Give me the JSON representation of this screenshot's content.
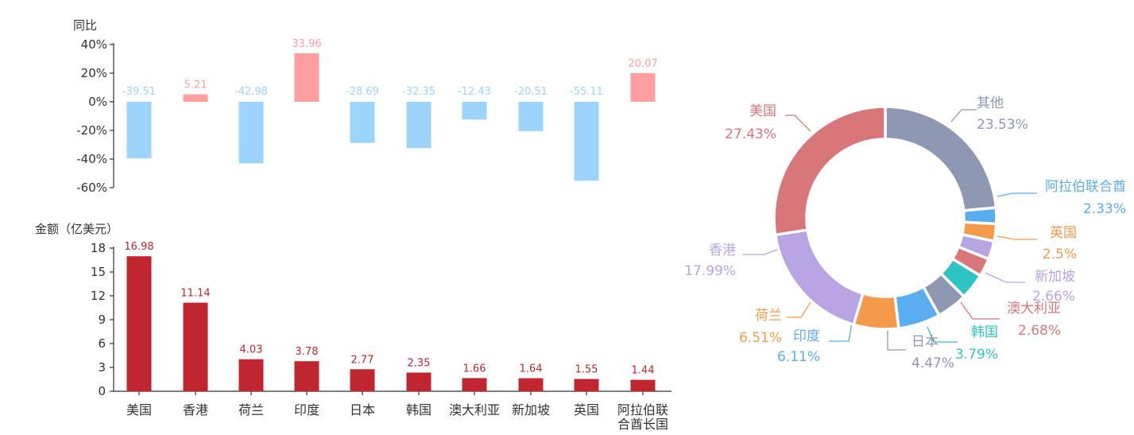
{
  "chart_data": [
    {
      "type": "bar",
      "ylabel": "同比",
      "categories": [
        "美国",
        "香港",
        "荷兰",
        "印度",
        "日本",
        "韩国",
        "澳大利亚",
        "新加坡",
        "英国",
        "阿拉伯联合酋长国"
      ],
      "values": [
        -39.51,
        5.21,
        -42.98,
        33.96,
        -28.69,
        -32.35,
        -12.43,
        -20.51,
        -55.11,
        20.07
      ],
      "value_labels": [
        "-39.51",
        "5.21",
        "-42.98",
        "33.96",
        "-28.69",
        "-32.35",
        "-12.43",
        "-20.51",
        "-55.11",
        "20.07"
      ],
      "ylim": [
        -60,
        40
      ],
      "yticks": [
        "40%",
        "20%",
        "0%",
        "-20%",
        "-40%",
        "-60%"
      ],
      "colors": {
        "positive": "#ff9f9f",
        "negative": "#9dd4fb"
      },
      "grid": false
    },
    {
      "type": "bar",
      "ylabel": "金额（亿美元）",
      "categories": [
        "美国",
        "香港",
        "荷兰",
        "印度",
        "日本",
        "韩国",
        "澳大利亚",
        "新加坡",
        "英国",
        "阿拉伯联合酋长国"
      ],
      "category_lines": [
        [
          "美国"
        ],
        [
          "香港"
        ],
        [
          "荷兰"
        ],
        [
          "印度"
        ],
        [
          "日本"
        ],
        [
          "韩国"
        ],
        [
          "澳大利亚"
        ],
        [
          "新加坡"
        ],
        [
          "英国"
        ],
        [
          "阿拉伯联",
          "合酋长国"
        ]
      ],
      "values": [
        16.98,
        11.14,
        4.03,
        3.78,
        2.77,
        2.35,
        1.66,
        1.64,
        1.55,
        1.44
      ],
      "value_labels": [
        "16.98",
        "11.14",
        "4.03",
        "3.78",
        "2.77",
        "2.35",
        "1.66",
        "1.64",
        "1.55",
        "1.44"
      ],
      "ylim": [
        0,
        18
      ],
      "yticks": [
        "18",
        "15",
        "12",
        "9",
        "6",
        "3",
        "0"
      ],
      "colors": {
        "bar": "#c0262f"
      },
      "grid": false
    },
    {
      "type": "pie",
      "donut": true,
      "slices": [
        {
          "name": "其他",
          "value": 23.53,
          "label": "23.53%",
          "color": "#8e98b3"
        },
        {
          "name": "阿拉伯联合酋",
          "value": 2.33,
          "label": "2.33%",
          "color": "#5aaef0"
        },
        {
          "name": "英国",
          "value": 2.5,
          "label": "2.5%",
          "color": "#f59a4b"
        },
        {
          "name": "新加坡",
          "value": 2.66,
          "label": "2.66%",
          "color": "#b8a3e3"
        },
        {
          "name": "澳大利亚",
          "value": 2.68,
          "label": "2.68%",
          "color": "#d9767a"
        },
        {
          "name": "韩国",
          "value": 3.79,
          "label": "3.79%",
          "color": "#2fc4c4"
        },
        {
          "name": "日本",
          "value": 4.47,
          "label": "4.47%",
          "color": "#8e98b3"
        },
        {
          "name": "印度",
          "value": 6.11,
          "label": "6.11%",
          "color": "#5aaef0"
        },
        {
          "name": "荷兰",
          "value": 6.51,
          "label": "6.51%",
          "color": "#f59a4b"
        },
        {
          "name": "香港",
          "value": 17.99,
          "label": "17.99%",
          "color": "#b8a3e3"
        },
        {
          "name": "美国",
          "value": 27.43,
          "label": "27.43%",
          "color": "#d9767a"
        }
      ]
    }
  ]
}
